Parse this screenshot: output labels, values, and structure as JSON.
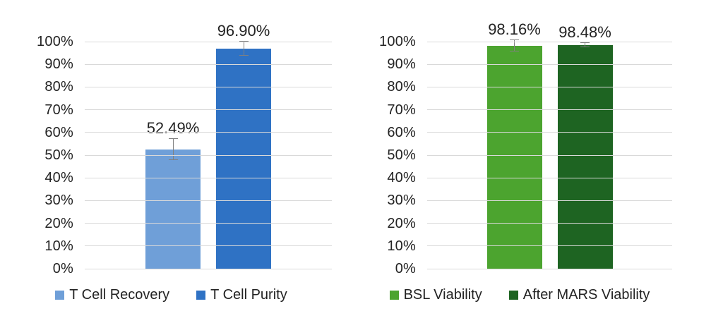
{
  "figure": {
    "background": "#ffffff",
    "text_color": "#232323",
    "gridline_color": "#d9d9d9",
    "error_bar_color": "#808080"
  },
  "chart_data": [
    {
      "type": "bar",
      "title": "",
      "xlabel": "",
      "ylabel": "",
      "ylim": [
        0,
        100
      ],
      "ytick_step": 10,
      "yticks": [
        "0%",
        "10%",
        "20%",
        "30%",
        "40%",
        "50%",
        "60%",
        "70%",
        "80%",
        "90%",
        "100%"
      ],
      "grid": true,
      "legend_position": "bottom",
      "categories": [
        "T Cell Recovery",
        "T Cell Purity"
      ],
      "values": [
        52.49,
        96.9
      ],
      "value_labels": [
        "52.49%",
        "96.90%"
      ],
      "errors": [
        4.7,
        3.0
      ],
      "bar_colors": [
        "#6f9fd8",
        "#2f72c4"
      ]
    },
    {
      "type": "bar",
      "title": "",
      "xlabel": "",
      "ylabel": "",
      "ylim": [
        0,
        100
      ],
      "ytick_step": 10,
      "yticks": [
        "0%",
        "10%",
        "20%",
        "30%",
        "40%",
        "50%",
        "60%",
        "70%",
        "80%",
        "90%",
        "100%"
      ],
      "grid": true,
      "legend_position": "bottom",
      "categories": [
        "BSL Viability",
        "After MARS Viability"
      ],
      "values": [
        98.16,
        98.48
      ],
      "value_labels": [
        "98.16%",
        "98.48%"
      ],
      "errors": [
        2.5,
        1.0
      ],
      "bar_colors": [
        "#4ca42f",
        "#1e6422"
      ]
    }
  ]
}
